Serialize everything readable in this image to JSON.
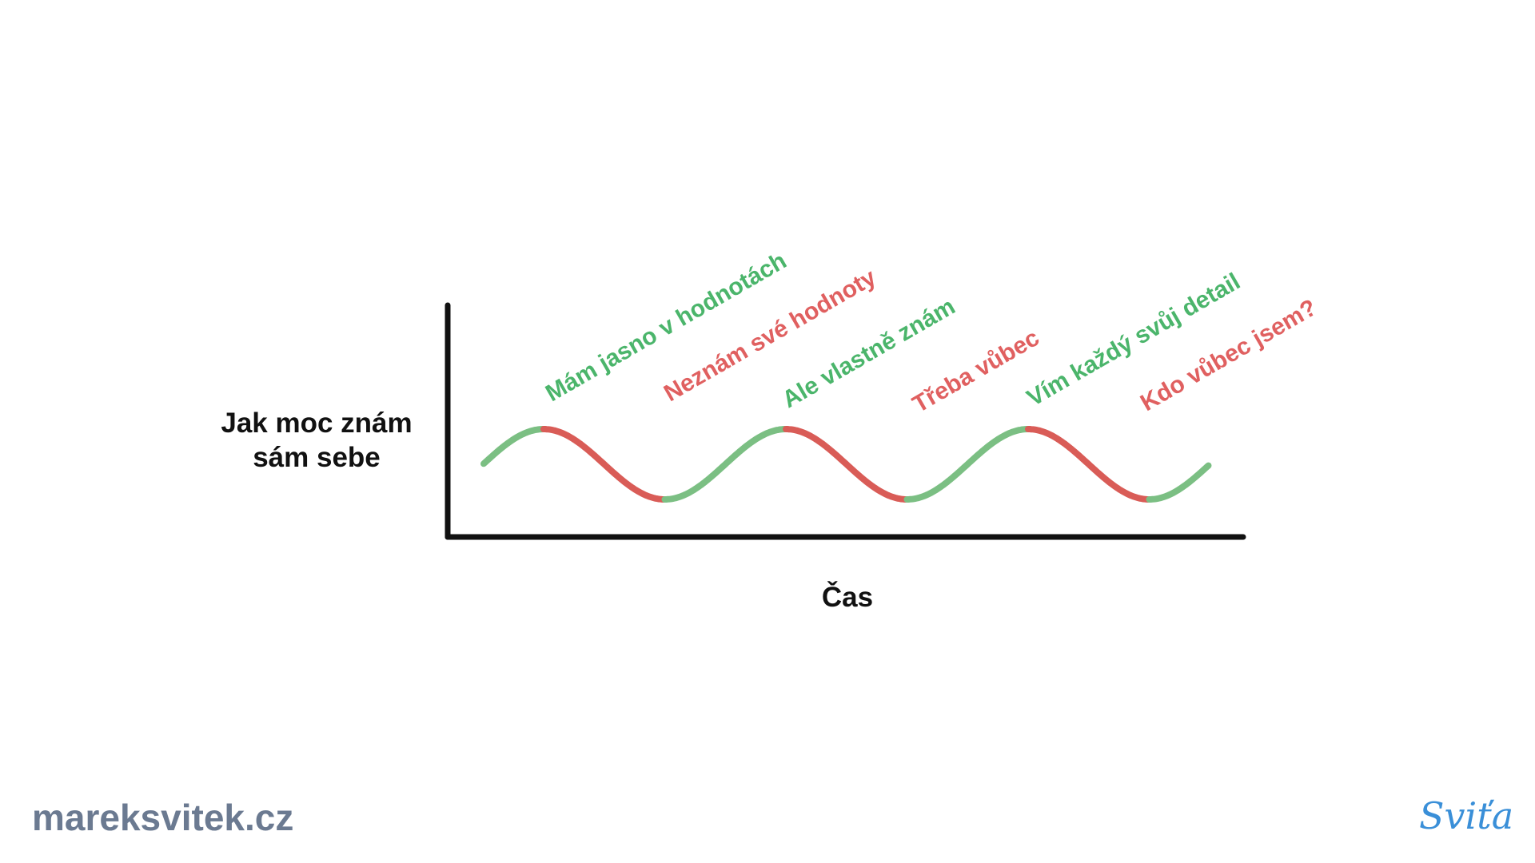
{
  "diagram": {
    "y_axis_label": "Jak moc znám\nsám sebe",
    "x_axis_label": "Čas",
    "wave_labels": [
      {
        "text": "Mám jasno v hodnotách",
        "state": "good"
      },
      {
        "text": "Neznám své hodnoty",
        "state": "bad"
      },
      {
        "text": "Ale vlastně znám",
        "state": "good"
      },
      {
        "text": "Třeba vůbec",
        "state": "bad"
      },
      {
        "text": "Vím každý svůj detail",
        "state": "good"
      },
      {
        "text": "Kdo vůbec jsem?",
        "state": "bad"
      }
    ]
  },
  "colors": {
    "good": "#7bbf83",
    "bad": "#d95c57",
    "good_text": "#4bb56b",
    "bad_text": "#e06060",
    "axis": "#111111"
  },
  "footer": {
    "website": "mareksvitek.cz",
    "signature": "Sviťa"
  }
}
